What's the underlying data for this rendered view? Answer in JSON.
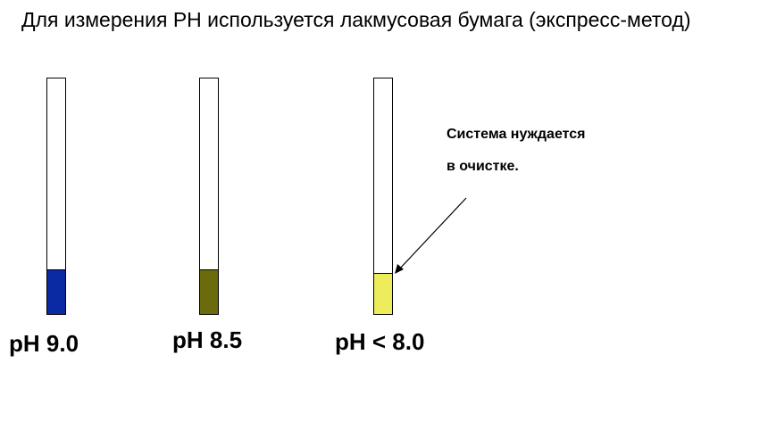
{
  "title": "Для измерения PH используется лакмусовая бумага (экспресс-метод)",
  "strips": [
    {
      "label": "pH 9.0",
      "color": "#0a2aa3",
      "fill_fraction": 0.19
    },
    {
      "label": "pH 8.5",
      "color": "#6b6a0c",
      "fill_fraction": 0.19
    },
    {
      "label": "pH < 8.0",
      "color": "#eded5c",
      "fill_fraction": 0.175
    }
  ],
  "note": {
    "line1": "Система нуждается",
    "line2": "в очистке."
  }
}
